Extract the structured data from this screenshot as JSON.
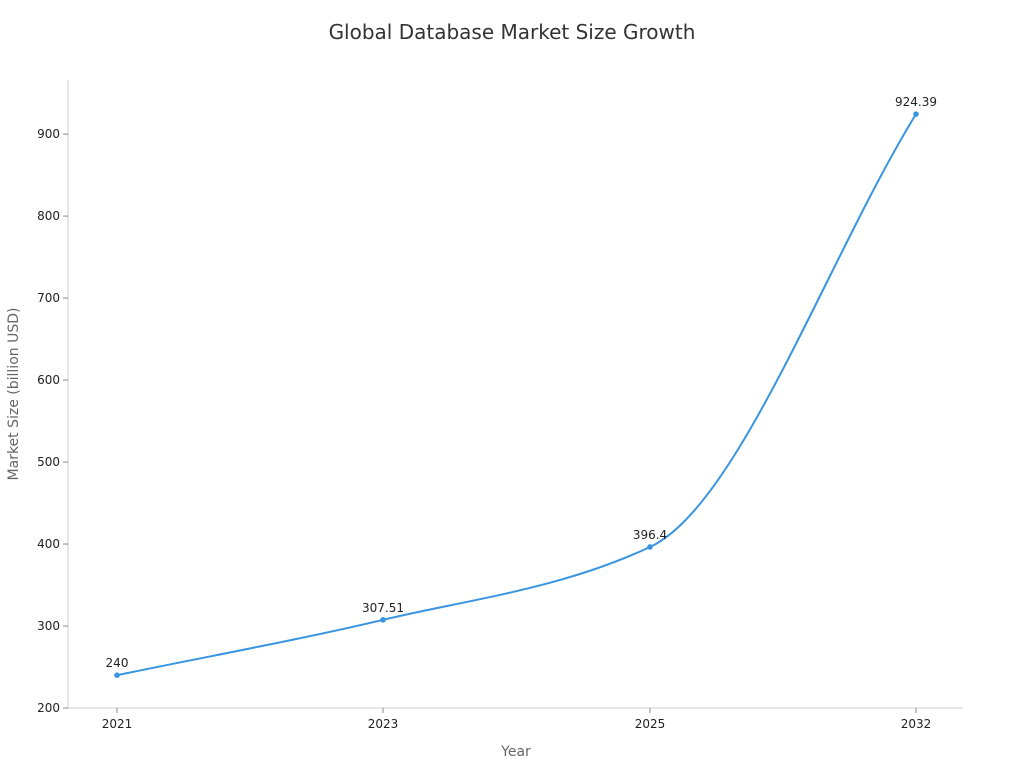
{
  "chart_data": {
    "type": "line",
    "title": "Global Database Market Size Growth",
    "xlabel": "Year",
    "ylabel": "Market Size (billion USD)",
    "categories": [
      "2021",
      "2023",
      "2025",
      "2032"
    ],
    "series": [
      {
        "values": [
          240,
          307.51,
          396.4,
          924.39
        ],
        "color": "#3a95e0"
      }
    ],
    "data_labels": [
      "240",
      "307.51",
      "396.4",
      "924.39"
    ],
    "y_ticks": [
      200,
      300,
      400,
      500,
      600,
      700,
      800,
      900
    ],
    "ylim": [
      200,
      966
    ],
    "grid": false,
    "smooth": true,
    "axis_color": "#cccccc"
  }
}
